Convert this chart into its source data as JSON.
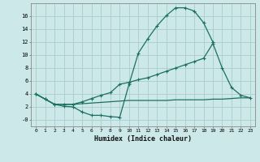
{
  "xlabel": "Humidex (Indice chaleur)",
  "bg_color": "#cce8e8",
  "grid_color": "#aacccc",
  "line_color": "#1a7060",
  "x_values": [
    0,
    1,
    2,
    3,
    4,
    5,
    6,
    7,
    8,
    9,
    10,
    11,
    12,
    13,
    14,
    15,
    16,
    17,
    18,
    19,
    20,
    21,
    22,
    23
  ],
  "line1_y": [
    4.0,
    3.2,
    2.4,
    2.1,
    2.0,
    1.2,
    0.7,
    0.7,
    0.5,
    0.4,
    5.5,
    10.3,
    12.5,
    14.5,
    16.1,
    17.3,
    17.3,
    16.8,
    15.0,
    12.0,
    null,
    null,
    null,
    null
  ],
  "line2_y": [
    4.0,
    3.2,
    2.4,
    2.4,
    2.4,
    2.8,
    3.3,
    3.8,
    4.2,
    5.5,
    5.8,
    6.2,
    6.5,
    7.0,
    7.5,
    8.0,
    8.5,
    9.0,
    9.5,
    11.8,
    8.0,
    5.0,
    3.8,
    3.4
  ],
  "line3_y": [
    4.0,
    3.2,
    2.4,
    2.4,
    2.4,
    2.5,
    2.6,
    2.7,
    2.8,
    2.9,
    3.0,
    3.0,
    3.0,
    3.0,
    3.0,
    3.1,
    3.1,
    3.1,
    3.1,
    3.2,
    3.2,
    3.3,
    3.4,
    3.4
  ],
  "line1_markers": [
    0,
    1,
    2,
    3,
    4,
    5,
    6,
    7,
    8,
    9,
    10,
    11,
    12,
    13,
    14,
    15,
    16,
    17,
    18,
    19
  ],
  "line2_markers": [
    0,
    9,
    10,
    14,
    15,
    16,
    17,
    18,
    19,
    20,
    21,
    22,
    23
  ],
  "ylim": [
    -1.0,
    18.0
  ],
  "xlim": [
    -0.5,
    23.5
  ],
  "yticks": [
    0,
    2,
    4,
    6,
    8,
    10,
    12,
    14,
    16
  ],
  "ytick_labels": [
    "-0",
    "2",
    "4",
    "6",
    "8",
    "10",
    "12",
    "14",
    "16"
  ],
  "xticks": [
    0,
    1,
    2,
    3,
    4,
    5,
    6,
    7,
    8,
    9,
    10,
    11,
    12,
    13,
    14,
    15,
    16,
    17,
    18,
    19,
    20,
    21,
    22,
    23
  ]
}
